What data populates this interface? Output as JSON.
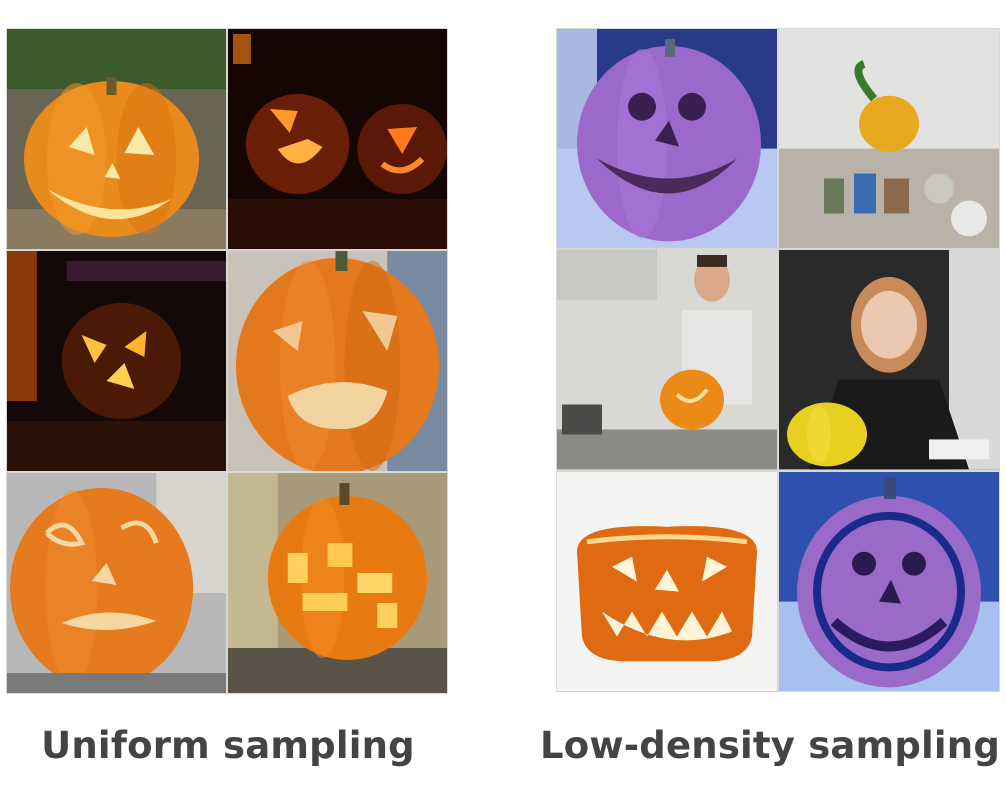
{
  "captions": {
    "left": "Uniform sampling",
    "right": "Low-density sampling"
  },
  "colors": {
    "caption": "#444444",
    "pumpkin_orange": "#e8821e",
    "purple_pumpkin": "#9b6ad0",
    "night_background": "#1a0a08"
  },
  "panels": {
    "left": {
      "cells": [
        {
          "subject": "carved-pumpkin-daylight-smile"
        },
        {
          "subject": "glowing-pumpkins-at-night"
        },
        {
          "subject": "glowing-pumpkin-dark-room"
        },
        {
          "subject": "carved-pumpkin-big-mouth"
        },
        {
          "subject": "carved-pumpkin-curly-face"
        },
        {
          "subject": "lit-pumpkin-on-table"
        }
      ]
    },
    "right": {
      "cells": [
        {
          "subject": "purple-carved-pumpkin"
        },
        {
          "subject": "small-pumpkin-on-shelf"
        },
        {
          "subject": "man-holding-pumpkin"
        },
        {
          "subject": "girl-with-yellow-pumpkin"
        },
        {
          "subject": "pumpkin-face-graphic"
        },
        {
          "subject": "purple-pumpkin-blue-outline"
        }
      ]
    }
  }
}
